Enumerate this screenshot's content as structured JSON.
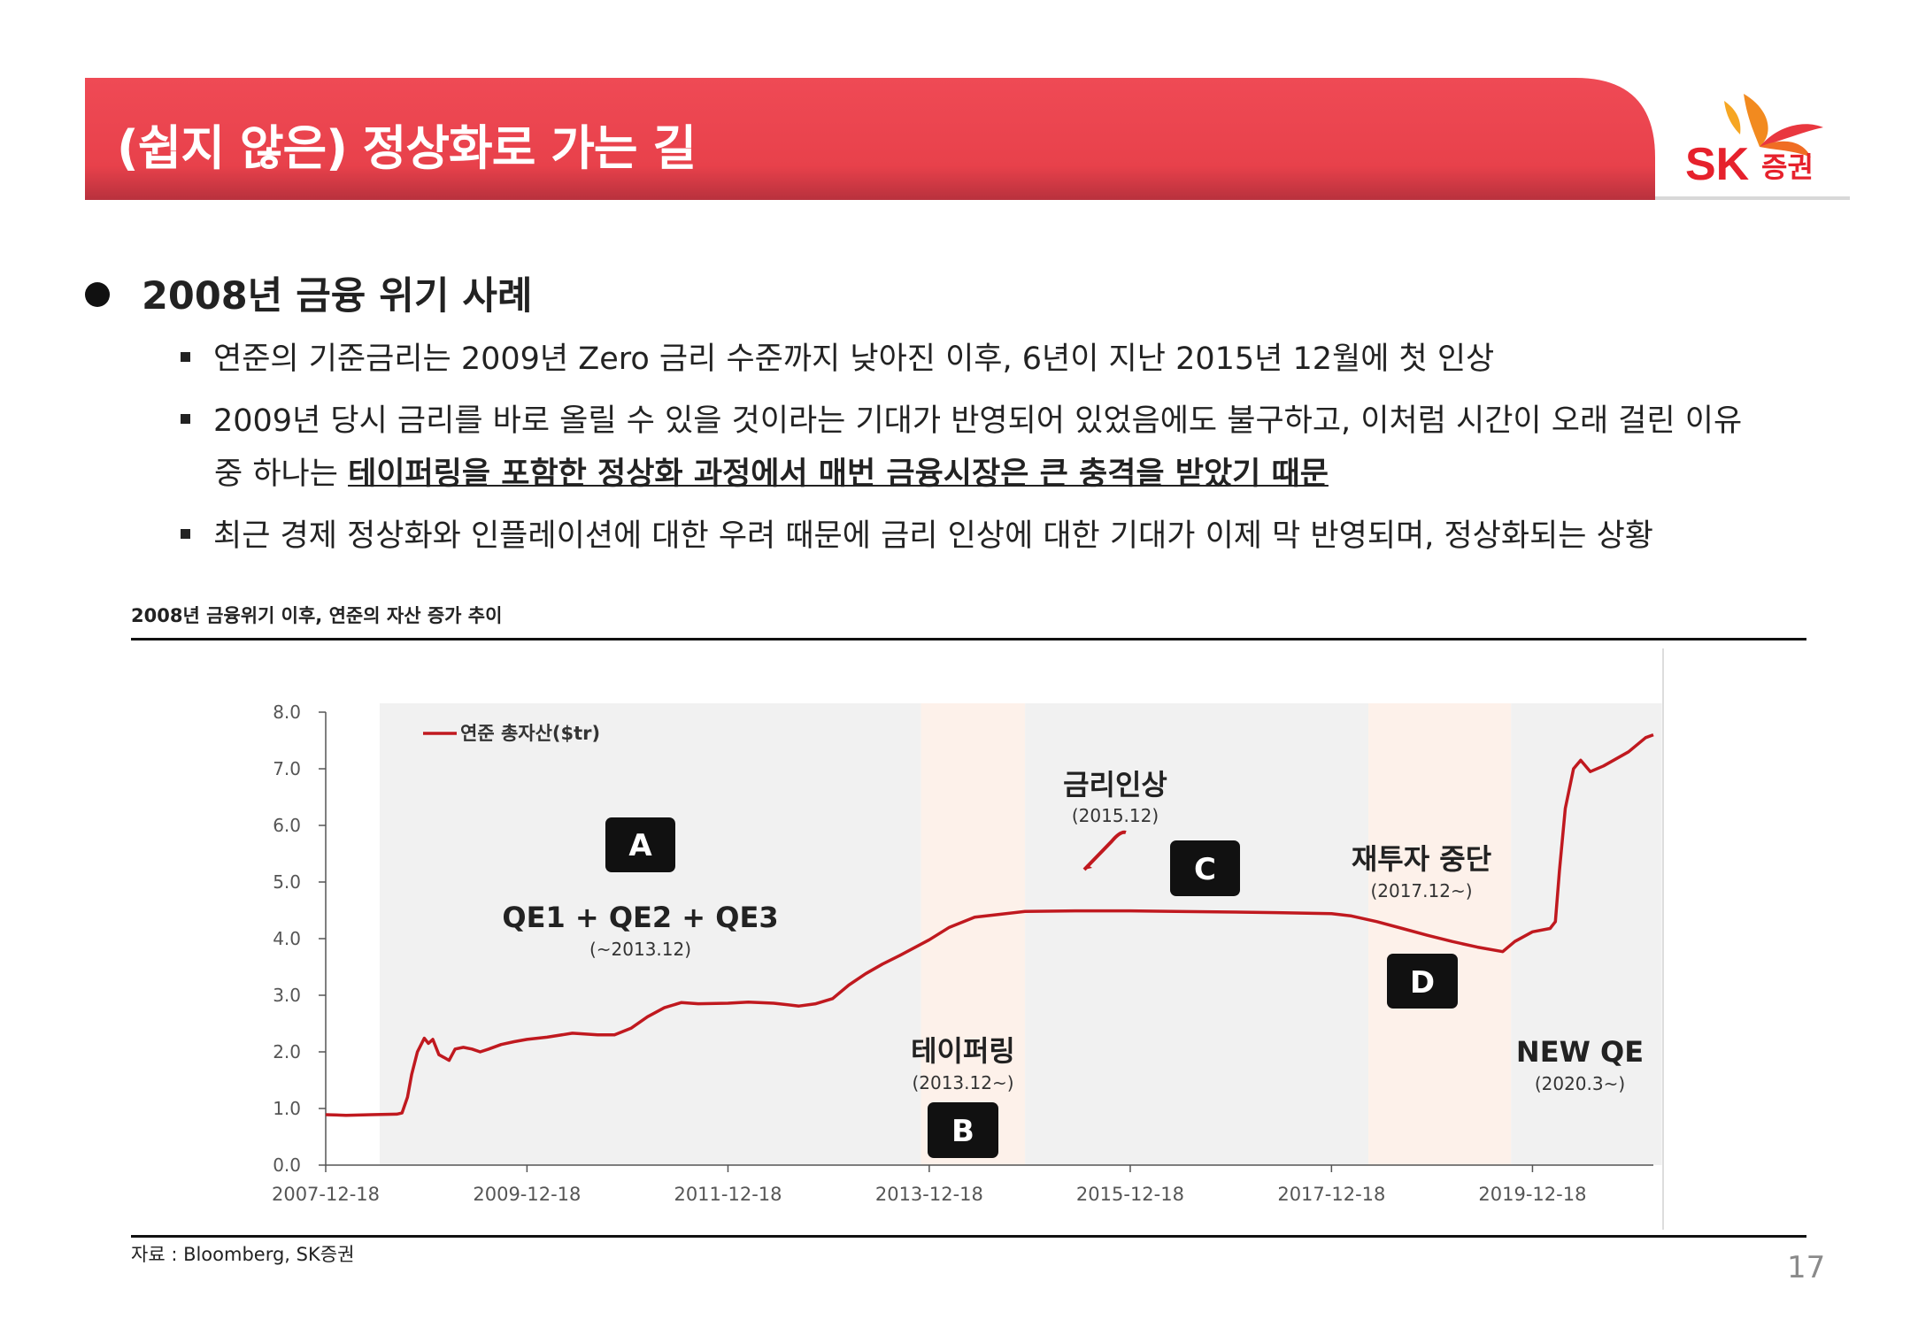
{
  "header": {
    "title": "(쉽지 않은) 정상화로 가는 길"
  },
  "logo": {
    "brand": "SK",
    "suffix": "증권"
  },
  "section": {
    "heading": "2008년 금융 위기 사례",
    "bullets": [
      {
        "text": "연준의 기준금리는 2009년 Zero 금리 수준까지 낮아진 이후, 6년이 지난 2015년 12월에 첫 인상"
      },
      {
        "text": "2009년 당시 금리를 바로 올릴 수 있을 것이라는 기대가 반영되어 있었음에도 불구하고, 이처럼 시간이 오래 걸린 이유",
        "cont_prefix": "중 하나는 ",
        "cont_emph": "테이퍼링을 포함한 정상화 과정에서 매번 금융시장은 큰 충격을 받았기 때문"
      },
      {
        "text": "최근 경제 정상화와 인플레이션에 대한 우려 때문에 금리 인상에 대한 기대가 이제 막 반영되며, 정상화되는 상황"
      }
    ]
  },
  "chart_section": {
    "title": "2008년 금융위기 이후, 연준의 자산 증가 추이",
    "source": "자료 : Bloomberg, SK증권"
  },
  "page_number": "17",
  "chart_data": {
    "type": "line",
    "series": [
      {
        "name": "연준 총자산($tr)",
        "color": "#c0191f",
        "points": [
          [
            "2007-12-18",
            0.89
          ],
          [
            "2008-03-01",
            0.88
          ],
          [
            "2008-06-01",
            0.89
          ],
          [
            "2008-09-01",
            0.9
          ],
          [
            "2008-09-20",
            0.92
          ],
          [
            "2008-10-10",
            1.2
          ],
          [
            "2008-10-25",
            1.6
          ],
          [
            "2008-11-15",
            2.0
          ],
          [
            "2008-12-10",
            2.24
          ],
          [
            "2008-12-25",
            2.15
          ],
          [
            "2009-01-10",
            2.22
          ],
          [
            "2009-02-01",
            1.95
          ],
          [
            "2009-02-20",
            1.9
          ],
          [
            "2009-03-10",
            1.85
          ],
          [
            "2009-04-01",
            2.05
          ],
          [
            "2009-05-01",
            2.08
          ],
          [
            "2009-06-01",
            2.05
          ],
          [
            "2009-07-01",
            2.0
          ],
          [
            "2009-08-01",
            2.05
          ],
          [
            "2009-09-15",
            2.13
          ],
          [
            "2009-11-01",
            2.18
          ],
          [
            "2009-12-18",
            2.22
          ],
          [
            "2010-03-01",
            2.26
          ],
          [
            "2010-06-01",
            2.33
          ],
          [
            "2010-09-01",
            2.3
          ],
          [
            "2010-11-01",
            2.3
          ],
          [
            "2011-01-01",
            2.42
          ],
          [
            "2011-03-01",
            2.62
          ],
          [
            "2011-05-01",
            2.78
          ],
          [
            "2011-07-01",
            2.87
          ],
          [
            "2011-09-01",
            2.85
          ],
          [
            "2011-12-18",
            2.86
          ],
          [
            "2012-03-01",
            2.88
          ],
          [
            "2012-06-01",
            2.86
          ],
          [
            "2012-09-01",
            2.81
          ],
          [
            "2012-11-01",
            2.85
          ],
          [
            "2013-01-01",
            2.94
          ],
          [
            "2013-03-01",
            3.18
          ],
          [
            "2013-05-01",
            3.38
          ],
          [
            "2013-07-01",
            3.55
          ],
          [
            "2013-09-01",
            3.7
          ],
          [
            "2013-12-18",
            3.98
          ],
          [
            "2014-03-01",
            4.2
          ],
          [
            "2014-06-01",
            4.38
          ],
          [
            "2014-09-01",
            4.43
          ],
          [
            "2014-12-01",
            4.48
          ],
          [
            "2015-06-01",
            4.49
          ],
          [
            "2015-12-18",
            4.49
          ],
          [
            "2016-06-01",
            4.48
          ],
          [
            "2016-12-01",
            4.47
          ],
          [
            "2017-06-01",
            4.46
          ],
          [
            "2017-12-18",
            4.44
          ],
          [
            "2018-03-01",
            4.4
          ],
          [
            "2018-06-01",
            4.3
          ],
          [
            "2018-09-01",
            4.18
          ],
          [
            "2018-12-01",
            4.06
          ],
          [
            "2019-03-01",
            3.95
          ],
          [
            "2019-06-01",
            3.85
          ],
          [
            "2019-09-01",
            3.77
          ],
          [
            "2019-10-15",
            3.95
          ],
          [
            "2019-12-18",
            4.12
          ],
          [
            "2020-02-20",
            4.18
          ],
          [
            "2020-03-10",
            4.3
          ],
          [
            "2020-03-25",
            5.2
          ],
          [
            "2020-04-15",
            6.3
          ],
          [
            "2020-05-15",
            7.0
          ],
          [
            "2020-06-10",
            7.15
          ],
          [
            "2020-07-15",
            6.95
          ],
          [
            "2020-09-01",
            7.05
          ],
          [
            "2020-12-01",
            7.3
          ],
          [
            "2021-02-01",
            7.55
          ],
          [
            "2021-03-01",
            7.6
          ]
        ]
      }
    ],
    "x_ticks": [
      "2007-12-18",
      "2009-12-18",
      "2011-12-18",
      "2013-12-18",
      "2015-12-18",
      "2017-12-18",
      "2019-12-18"
    ],
    "y_ticks": [
      "0.0",
      "1.0",
      "2.0",
      "3.0",
      "4.0",
      "5.0",
      "6.0",
      "7.0",
      "8.0"
    ],
    "ylim": [
      0,
      8
    ],
    "legend": "top-left",
    "shaded_periods": [
      {
        "start": "2008-07-01",
        "end": "2013-11-18",
        "color": "#f1f1f1"
      },
      {
        "start": "2013-11-18",
        "end": "2014-12-01",
        "color": "#fdf1ea"
      },
      {
        "start": "2014-12-01",
        "end": "2018-05-01",
        "color": "#f1f1f1"
      },
      {
        "start": "2018-05-01",
        "end": "2019-10-01",
        "color": "#fdf1ea"
      },
      {
        "start": "2019-10-01",
        "end": "2021-04-01",
        "color": "#f1f1f1"
      }
    ],
    "annotations": [
      {
        "badge": "A",
        "label": "QE1 + QE2 + QE3",
        "sub": "(~2013.12)"
      },
      {
        "badge": "B",
        "label": "테이퍼링",
        "sub": "(2013.12~)"
      },
      {
        "badge": "C",
        "label": "금리인상",
        "sub": "(2015.12)"
      },
      {
        "badge": "D",
        "label": "재투자 중단",
        "sub": "(2017.12~)"
      },
      {
        "label": "NEW QE",
        "sub": "(2020.3~)"
      }
    ]
  }
}
